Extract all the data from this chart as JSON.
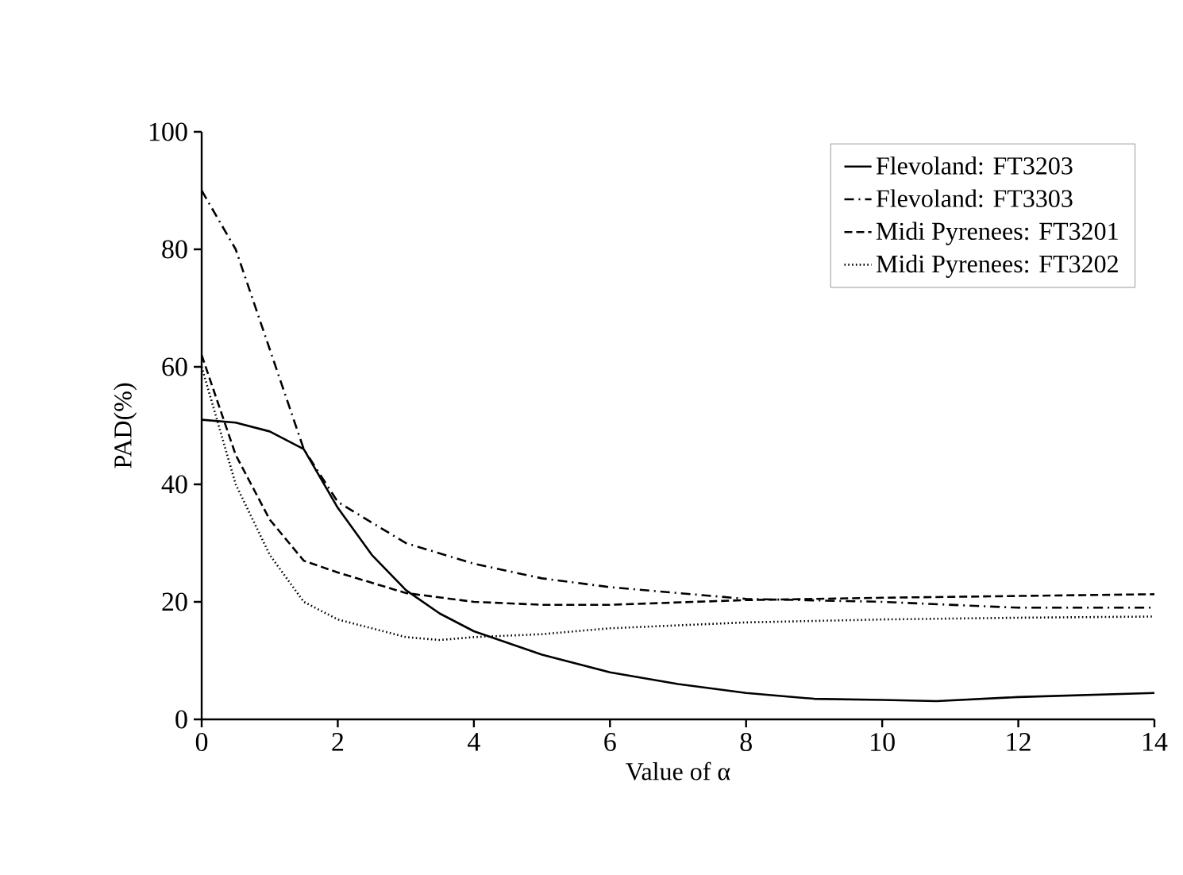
{
  "chart_data": {
    "type": "line",
    "xlabel": "Value of α",
    "ylabel": "PAD(%)",
    "xlim": [
      0,
      14
    ],
    "ylim": [
      0,
      100
    ],
    "xticks": [
      0,
      2,
      4,
      6,
      8,
      10,
      12,
      14
    ],
    "yticks": [
      0,
      20,
      40,
      60,
      80,
      100
    ],
    "grid": false,
    "legend": "top right",
    "marker": "none",
    "series": [
      {
        "name": "Flevoland: FT3203",
        "color": "#000000",
        "line_style": "solid",
        "x": [
          0,
          0.5,
          1,
          1.5,
          2,
          2.5,
          3,
          3.5,
          4,
          5,
          6,
          7,
          8,
          9,
          10,
          10.8,
          12,
          14
        ],
        "values": [
          51,
          50.5,
          49,
          46,
          36,
          28,
          22,
          18,
          15,
          11,
          8,
          6,
          4.5,
          3.5,
          3.3,
          3.1,
          3.8,
          4.5
        ]
      },
      {
        "name": "Flevoland: FT3303",
        "color": "#000000",
        "line_style": "dashdot",
        "x": [
          0,
          0.5,
          1,
          1.5,
          2,
          3,
          4,
          5,
          6,
          7,
          8,
          10,
          12,
          14
        ],
        "values": [
          90,
          80,
          63,
          46,
          37,
          30,
          26.5,
          24,
          22.5,
          21.5,
          20.5,
          20,
          19,
          19
        ]
      },
      {
        "name": "Midi Pyrenees: FT3201",
        "color": "#000000",
        "line_style": "dashed",
        "x": [
          0,
          0.5,
          1,
          1.5,
          2,
          3,
          4,
          5,
          6,
          8,
          10,
          12,
          14
        ],
        "values": [
          62,
          45,
          34,
          27,
          25,
          21.5,
          20,
          19.5,
          19.5,
          20.3,
          20.7,
          21,
          21.3
        ]
      },
      {
        "name": "Midi Pyrenees: FT3202",
        "color": "#000000",
        "line_style": "dotted",
        "x": [
          0,
          0.5,
          1,
          1.5,
          2,
          3,
          3.5,
          4,
          5,
          6,
          8,
          10,
          12,
          14
        ],
        "values": [
          60,
          40,
          28,
          20,
          17,
          14,
          13.5,
          14,
          14.5,
          15.5,
          16.5,
          17,
          17.3,
          17.5
        ]
      }
    ]
  }
}
